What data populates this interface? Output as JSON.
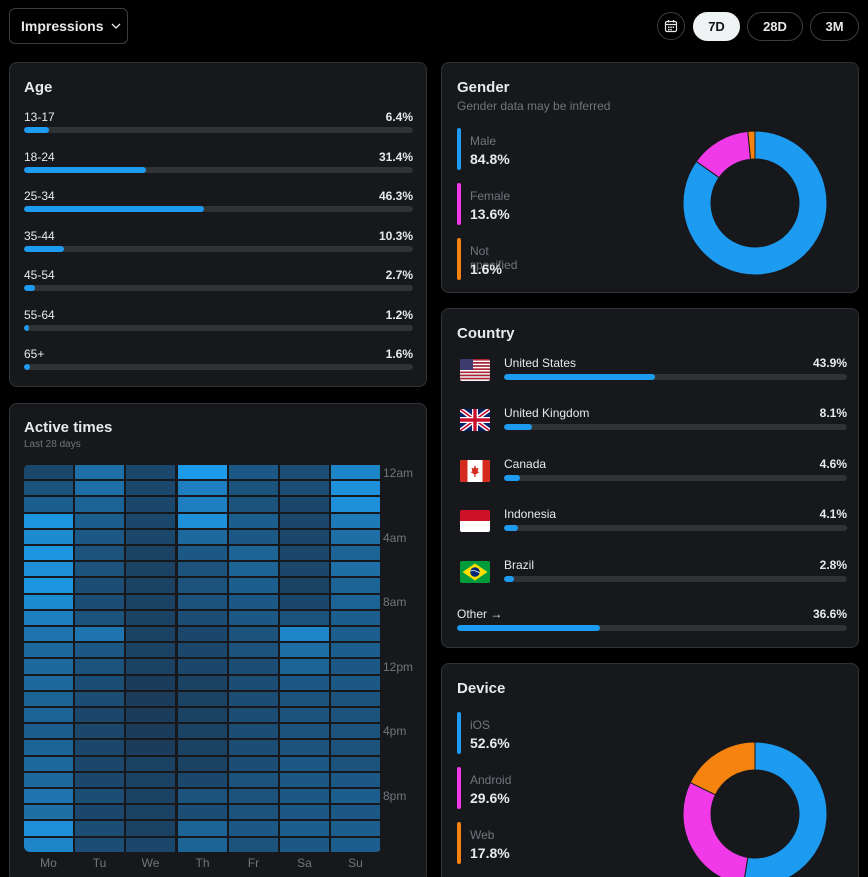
{
  "toolbar": {
    "metric_select": "Impressions",
    "ranges": [
      "7D",
      "28D",
      "3M"
    ],
    "active_range": "7D"
  },
  "colors": {
    "accent": "#1d9bf0",
    "male": "#1d9bf0",
    "female": "#f13ae7",
    "not_specified": "#f4830f",
    "ios": "#1d9bf0",
    "android": "#f13ae7",
    "web": "#f4830f"
  },
  "age": {
    "title": "Age",
    "rows": [
      {
        "label": "13-17",
        "value": "6.4%",
        "pct": 6.4
      },
      {
        "label": "18-24",
        "value": "31.4%",
        "pct": 31.4
      },
      {
        "label": "25-34",
        "value": "46.3%",
        "pct": 46.3
      },
      {
        "label": "35-44",
        "value": "10.3%",
        "pct": 10.3
      },
      {
        "label": "45-54",
        "value": "2.7%",
        "pct": 2.7
      },
      {
        "label": "55-64",
        "value": "1.2%",
        "pct": 1.2
      },
      {
        "label": "65+",
        "value": "1.6%",
        "pct": 1.6
      }
    ]
  },
  "active_times": {
    "title": "Active times",
    "subtitle": "Last 28 days",
    "hour_labels": [
      "12am",
      "4am",
      "8am",
      "12pm",
      "4pm",
      "8pm"
    ],
    "days": [
      "Mo",
      "Tu",
      "We",
      "Th",
      "Fr",
      "Sa",
      "Su"
    ],
    "levels": [
      [
        0.2,
        0.55,
        0.2,
        0.95,
        0.35,
        0.25,
        0.75
      ],
      [
        0.3,
        0.55,
        0.2,
        0.7,
        0.3,
        0.25,
        0.85
      ],
      [
        0.4,
        0.45,
        0.2,
        0.7,
        0.3,
        0.2,
        0.85
      ],
      [
        0.9,
        0.4,
        0.2,
        0.85,
        0.4,
        0.2,
        0.65
      ],
      [
        0.8,
        0.35,
        0.2,
        0.5,
        0.35,
        0.2,
        0.55
      ],
      [
        0.9,
        0.3,
        0.15,
        0.35,
        0.45,
        0.2,
        0.45
      ],
      [
        0.85,
        0.3,
        0.15,
        0.3,
        0.45,
        0.2,
        0.55
      ],
      [
        0.9,
        0.25,
        0.15,
        0.3,
        0.4,
        0.15,
        0.45
      ],
      [
        0.8,
        0.25,
        0.15,
        0.3,
        0.35,
        0.2,
        0.45
      ],
      [
        0.7,
        0.3,
        0.15,
        0.25,
        0.35,
        0.3,
        0.4
      ],
      [
        0.6,
        0.6,
        0.15,
        0.2,
        0.3,
        0.75,
        0.4
      ],
      [
        0.5,
        0.35,
        0.15,
        0.2,
        0.3,
        0.55,
        0.4
      ],
      [
        0.5,
        0.3,
        0.15,
        0.2,
        0.25,
        0.45,
        0.35
      ],
      [
        0.5,
        0.25,
        0.1,
        0.15,
        0.25,
        0.35,
        0.35
      ],
      [
        0.45,
        0.25,
        0.1,
        0.15,
        0.25,
        0.3,
        0.3
      ],
      [
        0.45,
        0.2,
        0.1,
        0.15,
        0.25,
        0.3,
        0.3
      ],
      [
        0.4,
        0.2,
        0.1,
        0.15,
        0.25,
        0.3,
        0.3
      ],
      [
        0.45,
        0.2,
        0.1,
        0.15,
        0.25,
        0.3,
        0.3
      ],
      [
        0.5,
        0.2,
        0.15,
        0.15,
        0.25,
        0.35,
        0.3
      ],
      [
        0.5,
        0.2,
        0.15,
        0.2,
        0.3,
        0.35,
        0.35
      ],
      [
        0.6,
        0.25,
        0.15,
        0.3,
        0.3,
        0.35,
        0.4
      ],
      [
        0.55,
        0.2,
        0.15,
        0.25,
        0.3,
        0.35,
        0.35
      ],
      [
        0.85,
        0.25,
        0.15,
        0.45,
        0.35,
        0.4,
        0.4
      ],
      [
        0.75,
        0.25,
        0.2,
        0.45,
        0.3,
        0.35,
        0.4
      ],
      [
        0.6,
        0.3,
        0.2,
        0.95,
        0.3,
        0.35,
        0.5
      ],
      [
        0.5,
        0.25,
        0.2,
        0.6,
        0.25,
        0.4,
        0.45
      ],
      [
        0.6,
        0.25,
        0.2,
        0.5,
        0.3,
        0.45,
        0.5
      ],
      [
        0.55,
        0.25,
        0.2,
        0.35,
        0.3,
        0.9,
        0.45
      ]
    ]
  },
  "gender": {
    "title": "Gender",
    "subtitle": "Gender data may be inferred",
    "items": [
      {
        "label": "Male",
        "value": "84.8%",
        "pct": 84.8
      },
      {
        "label": "Female",
        "value": "13.6%",
        "pct": 13.6
      },
      {
        "label": "Not specified",
        "value": "1.6%",
        "pct": 1.6
      }
    ]
  },
  "country": {
    "title": "Country",
    "rows": [
      {
        "name": "United States",
        "value": "43.9%",
        "pct": 43.9,
        "flag": "us-flag"
      },
      {
        "name": "United Kingdom",
        "value": "8.1%",
        "pct": 8.1,
        "flag": "uk-flag"
      },
      {
        "name": "Canada",
        "value": "4.6%",
        "pct": 4.6,
        "flag": "canada-flag"
      },
      {
        "name": "Indonesia",
        "value": "4.1%",
        "pct": 4.1,
        "flag": "indonesia-flag"
      },
      {
        "name": "Brazil",
        "value": "2.8%",
        "pct": 2.8,
        "flag": "brazil-flag"
      }
    ],
    "other": {
      "label": "Other →",
      "value": "36.6%",
      "pct": 36.6
    }
  },
  "device": {
    "title": "Device",
    "items": [
      {
        "label": "iOS",
        "value": "52.6%",
        "pct": 52.6
      },
      {
        "label": "Android",
        "value": "29.6%",
        "pct": 29.6
      },
      {
        "label": "Web",
        "value": "17.8%",
        "pct": 17.8
      }
    ]
  }
}
